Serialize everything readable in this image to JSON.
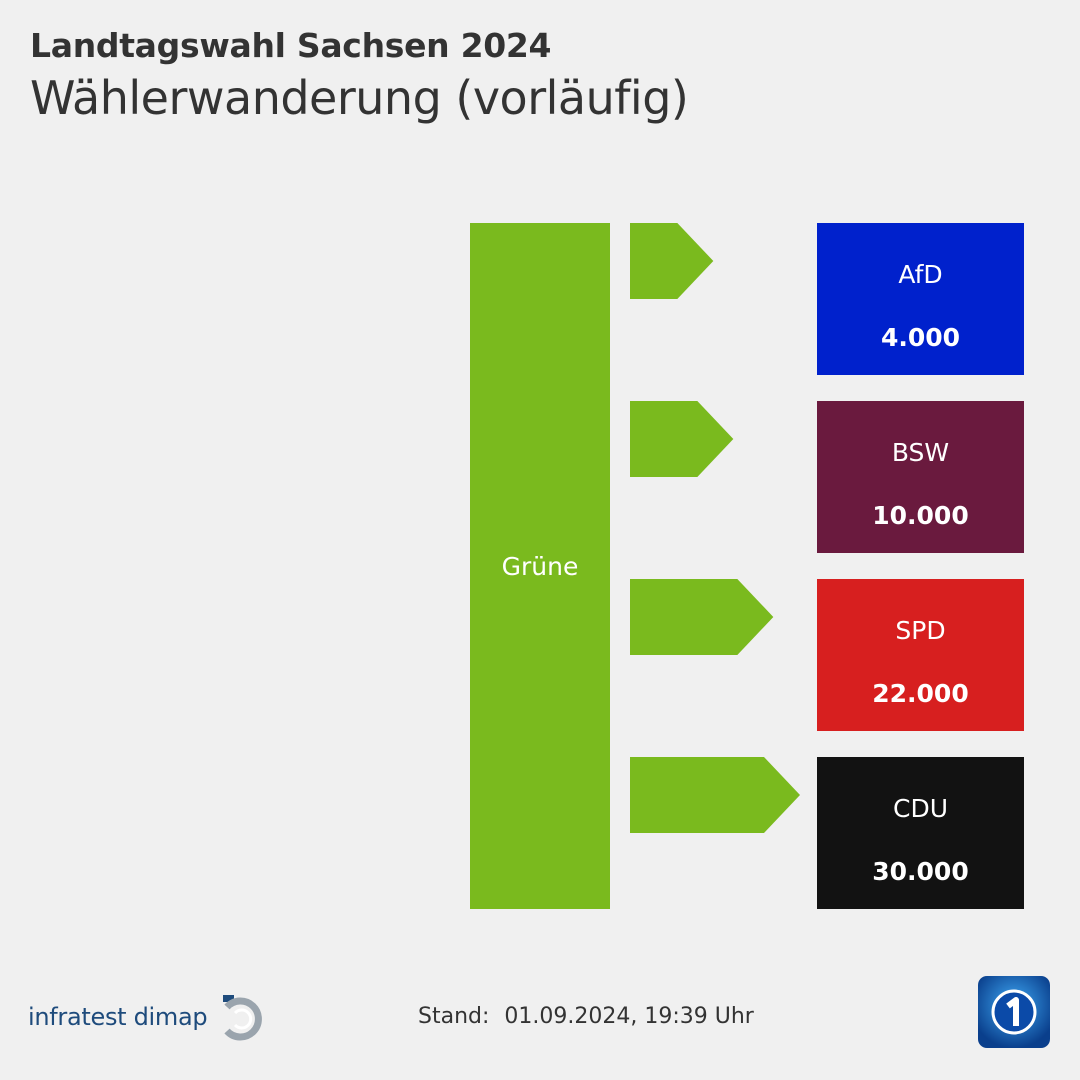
{
  "header": {
    "title": "Landtagswahl Sachsen 2024",
    "subtitle": "Wählerwanderung (vorläufig)"
  },
  "chart_data": {
    "type": "flow",
    "source": {
      "name": "Grüne",
      "color": "#7aba1e"
    },
    "flows": [
      {
        "target": "AfD",
        "value": 4000,
        "value_label": "4.000",
        "color": "#0021cc"
      },
      {
        "target": "BSW",
        "value": 10000,
        "value_label": "10.000",
        "color": "#6a1a3e"
      },
      {
        "target": "SPD",
        "value": 22000,
        "value_label": "22.000",
        "color": "#d71f1f"
      },
      {
        "target": "CDU",
        "value": 30000,
        "value_label": "30.000",
        "color": "#121212"
      }
    ]
  },
  "footer": {
    "brand": "infratest dimap",
    "stand_label": "Stand:",
    "stand_value": "01.09.2024, 19:39 Uhr"
  },
  "colors": {
    "background": "#f0f0f0",
    "arrow": "#7aba1e",
    "brand_blue": "#1e4b7c"
  }
}
